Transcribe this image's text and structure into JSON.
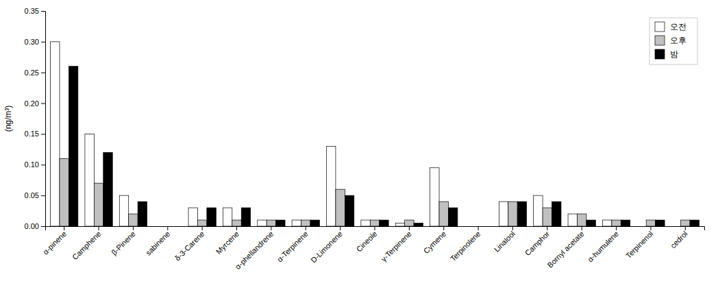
{
  "chart_data": {
    "type": "bar",
    "categories": [
      "α-pinene",
      "Camphene",
      "β-Pinene",
      "sabinene",
      "δ-3-Carene",
      "Myrcene",
      "α-phellandrene",
      "α-Terpinene",
      "D-Limonene",
      "Cineole",
      "γ-Terpinene",
      "Cymene",
      "Terpinolene",
      "Linalool",
      "Camphor",
      "Bornyl acetate",
      "α-humulene",
      "Terpinenol",
      "cedrol"
    ],
    "series": [
      {
        "name": "오전",
        "color": "#ffffff",
        "values": [
          0.3,
          0.15,
          0.05,
          0.0,
          0.03,
          0.03,
          0.01,
          0.01,
          0.13,
          0.01,
          0.005,
          0.095,
          0.0,
          0.04,
          0.05,
          0.02,
          0.01,
          0.0,
          0.0
        ]
      },
      {
        "name": "오후",
        "color": "#c0c0c0",
        "values": [
          0.11,
          0.07,
          0.02,
          0.0,
          0.01,
          0.01,
          0.01,
          0.01,
          0.06,
          0.01,
          0.01,
          0.04,
          0.0,
          0.04,
          0.03,
          0.02,
          0.01,
          0.01,
          0.01
        ]
      },
      {
        "name": "밤",
        "color": "#000000",
        "values": [
          0.26,
          0.12,
          0.04,
          0.0,
          0.03,
          0.03,
          0.01,
          0.01,
          0.05,
          0.01,
          0.005,
          0.03,
          0.0,
          0.04,
          0.04,
          0.01,
          0.01,
          0.01,
          0.01
        ]
      }
    ],
    "ylabel": "(ng/m³)",
    "ylim": [
      0,
      0.35
    ],
    "yticks": [
      {
        "value": 0,
        "label": "0.00"
      },
      {
        "value": 0.05,
        "label": "0.05"
      },
      {
        "value": 0.1,
        "label": "0.10"
      },
      {
        "value": 0.15,
        "label": "0.15"
      },
      {
        "value": 0.2,
        "label": "0.20"
      },
      {
        "value": 0.25,
        "label": "0.25"
      },
      {
        "value": 0.3,
        "label": "0.30"
      },
      {
        "value": 0.35,
        "label": "0.35"
      }
    ],
    "legend": "upper-right",
    "grid": false
  }
}
